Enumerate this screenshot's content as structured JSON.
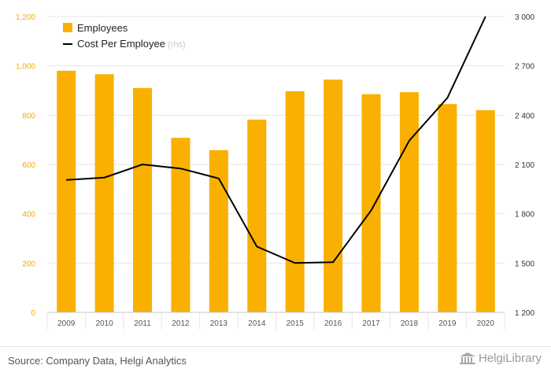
{
  "chart_data": {
    "type": "bar+line",
    "categories": [
      "2009",
      "2010",
      "2011",
      "2012",
      "2013",
      "2014",
      "2015",
      "2016",
      "2017",
      "2018",
      "2019",
      "2020"
    ],
    "series": [
      {
        "name": "Employees",
        "type": "bar",
        "axis": "left",
        "values": [
          980,
          966,
          910,
          708,
          658,
          782,
          897,
          944,
          885,
          893,
          845,
          820
        ]
      },
      {
        "name": "Cost Per Employee",
        "type": "line",
        "axis": "right",
        "values": [
          2005,
          2020,
          2100,
          2075,
          2015,
          1600,
          1500,
          1505,
          1820,
          2245,
          2505,
          3000
        ]
      }
    ],
    "left_axis": {
      "min": 0,
      "max": 1200,
      "ticks": [
        0,
        200,
        400,
        600,
        800,
        1000,
        1200
      ],
      "tick_labels": [
        "0",
        "200",
        "400",
        "600",
        "800",
        "1,000",
        "1,200"
      ]
    },
    "right_axis": {
      "min": 1200,
      "max": 3000,
      "ticks": [
        1200,
        1500,
        1800,
        2100,
        2400,
        2700,
        3000
      ],
      "tick_labels": [
        "1 200",
        "1 500",
        "1 800",
        "2 100",
        "2 400",
        "2 700",
        "3 000"
      ]
    },
    "legend": [
      {
        "label": "Employees",
        "suffix": ""
      },
      {
        "label": "Cost Per Employee",
        "suffix": " (rhs)"
      }
    ]
  },
  "colors": {
    "bar": "#F9B000",
    "line": "#000000",
    "left_tick": "#F5A800",
    "right_tick": "#333333",
    "grid": "#e6e6e6",
    "muted": "#c8c8c8"
  },
  "footer": {
    "source": "Source: Company Data, Helgi Analytics",
    "logo_text": "HelgiLibrary"
  }
}
